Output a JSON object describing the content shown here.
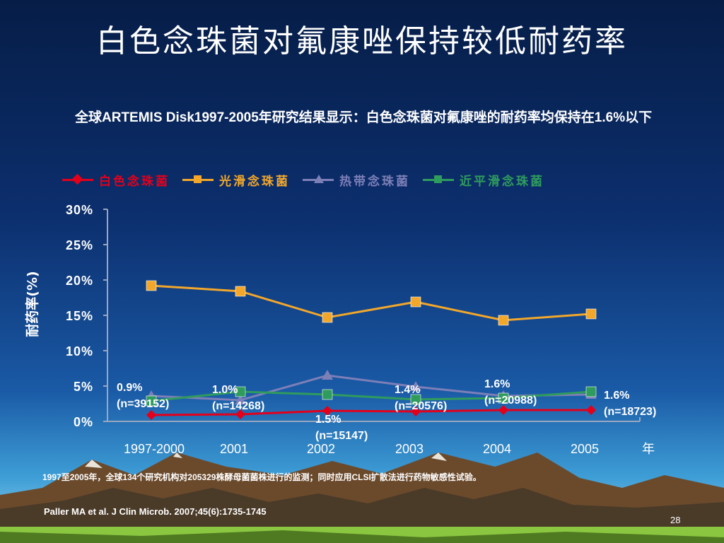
{
  "slide": {
    "title": "白色念珠菌对氟康唑保持较低耐药率",
    "subtitle": "全球ARTEMIS Disk1997-2005年研究结果显示：白色念珠菌对氟康唑的耐药率均保持在1.6%以下",
    "footnote": "1997至2005年，全球134个研究机构对205329株酵母菌菌株进行的监测；同时应用CLSI扩散法进行药物敏感性试验。",
    "reference": "Paller MA et al. J Clin Microb. 2007;45(6):1735-1745",
    "page_number": "28"
  },
  "colors": {
    "c_albicans": "#e3001b",
    "c_glabrata": "#f2a72b",
    "c_tropicalis": "#7d7fb7",
    "c_parapsilosis": "#2f9b5d"
  },
  "chart_data": {
    "type": "line",
    "categories": [
      "1997-2000",
      "2001",
      "2002",
      "2003",
      "2004",
      "2005"
    ],
    "xlabel_unit": "年",
    "ylabel": "耐药率(%)",
    "ylim": [
      0,
      30
    ],
    "yticks": [
      "0%",
      "5%",
      "10%",
      "15%",
      "20%",
      "25%",
      "30%"
    ],
    "series": [
      {
        "name": "白色念珠菌",
        "color": "#e3001b",
        "marker": "diamond",
        "values": [
          0.9,
          1.0,
          1.5,
          1.4,
          1.6,
          1.6
        ]
      },
      {
        "name": "光滑念珠菌",
        "color": "#f2a72b",
        "marker": "square",
        "values": [
          19.2,
          18.4,
          14.7,
          16.9,
          14.3,
          15.2
        ]
      },
      {
        "name": "热带念珠菌",
        "color": "#7d7fb7",
        "marker": "triangle",
        "values": [
          3.6,
          3.0,
          6.5,
          4.9,
          3.6,
          3.8
        ]
      },
      {
        "name": "近平滑念珠菌",
        "color": "#2f9b5d",
        "marker": "square",
        "values": [
          2.9,
          4.2,
          3.8,
          3.1,
          3.3,
          4.2
        ]
      }
    ],
    "annotations": [
      {
        "pct": "0.9%",
        "n": "(n=39152)"
      },
      {
        "pct": "1.0%",
        "n": "(n=14268)"
      },
      {
        "pct": "1.5%",
        "n": "(n=15147)"
      },
      {
        "pct": "1.4%",
        "n": "(n=20576)"
      },
      {
        "pct": "1.6%",
        "n": "(n=20988)"
      },
      {
        "pct": "1.6%",
        "n": "(n=18723)"
      }
    ]
  }
}
